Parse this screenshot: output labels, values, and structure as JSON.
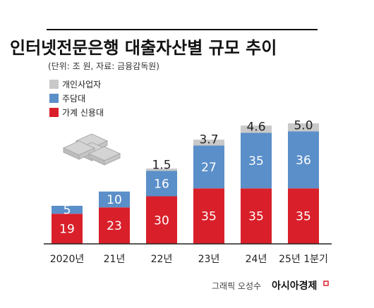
{
  "chart_data": {
    "type": "bar",
    "stacked": true,
    "title": "인터넷전문은행 대출자산별 규모 추이",
    "unit_note": "(단위: 조 원, 자료: 금융감독원)",
    "categories": [
      "2020년",
      "21년",
      "22년",
      "23년",
      "24년",
      "25년 1분기"
    ],
    "series": [
      {
        "name": "가계 신용대",
        "color": "#d9202a",
        "values": [
          19,
          23,
          30,
          35,
          35,
          35
        ],
        "labels": [
          "19",
          "23",
          "30",
          "35",
          "35",
          "35"
        ]
      },
      {
        "name": "주담대",
        "color": "#5b8fc9",
        "values": [
          5,
          10,
          16,
          27,
          35,
          36
        ],
        "labels": [
          "5",
          "10",
          "16",
          "27",
          "35",
          "36"
        ]
      },
      {
        "name": "개인사업자",
        "color": "#c9c9c9",
        "values": [
          0,
          0,
          1.5,
          3.7,
          4.6,
          5.0
        ],
        "labels": [
          "",
          "",
          "1.5",
          "3.7",
          "4.6",
          "5.0"
        ]
      }
    ],
    "legend_position": "top-left",
    "grid": false
  },
  "footer": {
    "credit": "그래픽 오성수",
    "brand": "아시아경제"
  },
  "colors": {
    "title_rule": "#111111",
    "baseline": "#222222"
  }
}
